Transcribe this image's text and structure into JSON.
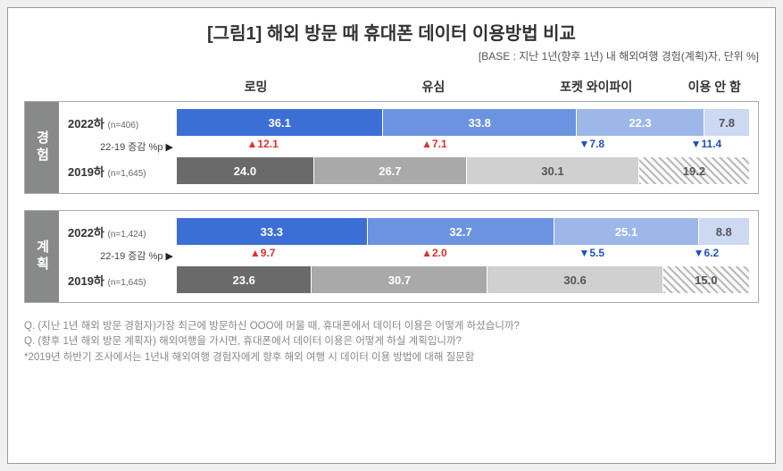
{
  "title": "[그림1] 해외 방문 때 휴대폰 데이터 이용방법 비교",
  "subtitle": "[BASE : 지난 1년(향후 1년) 내 해외여행 경험(계획)자, 단위 %]",
  "categories": [
    "로밍",
    "유심",
    "포켓 와이파이",
    "이용 안 함"
  ],
  "category_widths_pct": [
    30,
    30,
    25,
    15
  ],
  "colors_2022": [
    "#3b6fd6",
    "#6b93df",
    "#9cb7e8",
    "#cdd8f2"
  ],
  "colors_2019": [
    "#6a6a6a",
    "#a9a9a9",
    "#d0d0d0",
    "hatch"
  ],
  "text_colors_2022": [
    "#fff",
    "#fff",
    "#fff",
    "#555"
  ],
  "text_colors_2019": [
    "#fff",
    "#fff",
    "#555",
    "#555"
  ],
  "panels": [
    {
      "label": "경험",
      "row2022": {
        "year": "2022하",
        "n": "(n=406)",
        "values": [
          36.1,
          33.8,
          22.3,
          7.8
        ]
      },
      "delta": {
        "label": "22-19 증감 %p",
        "values": [
          "▲12.1",
          "▲7.1",
          "▼7.8",
          "▼11.4"
        ],
        "dir": [
          "up",
          "up",
          "down",
          "down"
        ]
      },
      "row2019": {
        "year": "2019하",
        "n": "(n=1,645)",
        "values": [
          24.0,
          26.7,
          30.1,
          19.2
        ]
      }
    },
    {
      "label": "계획",
      "row2022": {
        "year": "2022하",
        "n": "(n=1,424)",
        "values": [
          33.3,
          32.7,
          25.1,
          8.8
        ]
      },
      "delta": {
        "label": "22-19 증감 %p",
        "values": [
          "▲9.7",
          "▲2.0",
          "▼5.5",
          "▼6.2"
        ],
        "dir": [
          "up",
          "up",
          "down",
          "down"
        ]
      },
      "row2019": {
        "year": "2019하",
        "n": "(n=1,645)",
        "values": [
          23.6,
          30.7,
          30.6,
          15.0
        ]
      }
    }
  ],
  "footer": [
    "Q. (지난 1년 해외 방문 경험자)가장 최근에 방문하신 OOO에 머물 때, 휴대폰에서 데이터 이용은 어떻게 하셨습니까?",
    "Q. (향후 1년 해외 방문 계획자) 해외여행을 가시면, 휴대폰에서 데이터 이용은 어떻게 하실 계획입니까?",
    "*2019년 하반기 조사에서는 1년내 해외여행 경험자에게 향후 해외 여행 시 데이터 이용 방법에 대해 질문함"
  ]
}
